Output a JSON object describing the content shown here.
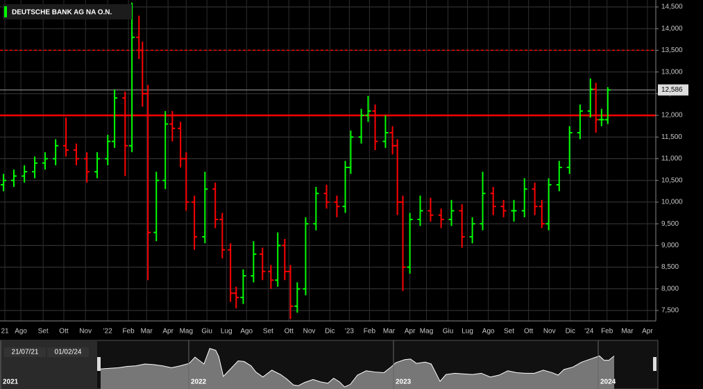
{
  "chart_data": {
    "type": "ohlc",
    "title": "DEUTSCHE BANK AG NA O.N.",
    "x": [
      0.08,
      0.61,
      1.15,
      1.68,
      2.21,
      2.75,
      3.28,
      3.81,
      4.35,
      4.88,
      5.42,
      5.77,
      6.31,
      6.66,
      7.02,
      7.2,
      7.48,
      7.91,
      8.37,
      8.73,
      9.15,
      9.44,
      9.86,
      10.4,
      10.93,
      11.29,
      11.71,
      12.0,
      12.36,
      12.89,
      13.35,
      13.78,
      14.13,
      14.49,
      14.78,
      15.13,
      15.56,
      16.09,
      16.63,
      17.16,
      17.59,
      17.87,
      18.41,
      18.76,
      19.12,
      19.65,
      20.01,
      20.26,
      20.54,
      20.9,
      21.43,
      21.96,
      22.5,
      23.03,
      23.57,
      24.1,
      24.63,
      25.17,
      25.7,
      26.23,
      26.77,
      27.3,
      27.66,
      28.01,
      28.55,
      29.08,
      29.62,
      30.15,
      30.43,
      30.72,
      31.04
    ],
    "open": [
      10400,
      10500,
      10600,
      10700,
      10900,
      11000,
      11300,
      11200,
      11000,
      10700,
      11000,
      11400,
      12400,
      11300,
      13800,
      13500,
      12500,
      9300,
      10500,
      11800,
      11700,
      11000,
      10000,
      9200,
      10300,
      9600,
      8900,
      7900,
      7800,
      8300,
      8800,
      8400,
      8200,
      9000,
      8400,
      7600,
      8000,
      9500,
      10200,
      10000,
      9900,
      10800,
      11500,
      12000,
      12100,
      11400,
      11600,
      11300,
      10000,
      8500,
      9600,
      9800,
      9700,
      9600,
      9800,
      9200,
      9500,
      10200,
      9900,
      9800,
      9800,
      10300,
      9900,
      9500,
      10400,
      10800,
      11600,
      12100,
      12600,
      11900,
      11900
    ],
    "high": [
      10650,
      10750,
      10850,
      11050,
      11150,
      11450,
      11950,
      11350,
      11150,
      11150,
      11550,
      12600,
      12550,
      14600,
      14300,
      13700,
      12700,
      10700,
      12100,
      12100,
      11850,
      11150,
      10150,
      10700,
      10450,
      9750,
      9050,
      8050,
      8450,
      9100,
      8950,
      8550,
      9300,
      9150,
      8550,
      8150,
      9650,
      10350,
      10400,
      10150,
      10950,
      11650,
      12150,
      12450,
      12250,
      12000,
      11750,
      11450,
      10150,
      9750,
      10150,
      10100,
      9850,
      10050,
      9950,
      9650,
      10700,
      10350,
      10050,
      10050,
      10550,
      10450,
      10050,
      10550,
      10950,
      11750,
      12250,
      12850,
      12750,
      12150,
      12650
    ],
    "low": [
      10250,
      10350,
      10450,
      10550,
      10750,
      10850,
      11050,
      10850,
      10450,
      10550,
      10850,
      11250,
      10600,
      11150,
      13300,
      12200,
      8200,
      9100,
      10300,
      11400,
      10800,
      9800,
      8900,
      9050,
      9400,
      8700,
      7700,
      7550,
      7650,
      8150,
      8200,
      8000,
      8050,
      8200,
      7300,
      7450,
      7850,
      9350,
      9850,
      9650,
      9750,
      10650,
      11350,
      11850,
      11200,
      11250,
      11100,
      9700,
      7950,
      8350,
      9450,
      9550,
      9400,
      9450,
      8950,
      9050,
      9350,
      9700,
      9650,
      9550,
      9650,
      9700,
      9400,
      9350,
      10250,
      10650,
      11450,
      11950,
      11600,
      11750,
      11800
    ],
    "close": [
      10500,
      10600,
      10700,
      10900,
      11000,
      11300,
      11200,
      11000,
      10700,
      11000,
      11400,
      12400,
      11300,
      13800,
      13500,
      12500,
      9300,
      10500,
      11800,
      11700,
      11000,
      10000,
      9200,
      10300,
      9600,
      8900,
      7900,
      7800,
      8300,
      8800,
      8400,
      8200,
      9000,
      8400,
      7600,
      8000,
      9500,
      10200,
      10000,
      9900,
      10800,
      11500,
      12000,
      12100,
      11400,
      11600,
      11300,
      10000,
      8500,
      9600,
      9800,
      9700,
      9600,
      9800,
      9200,
      9500,
      10200,
      9900,
      9800,
      9800,
      10300,
      9900,
      9500,
      10400,
      10800,
      11600,
      12100,
      12600,
      11900,
      11900,
      12586
    ],
    "up_color": "#00ff00",
    "down_color": "#ff0000",
    "xlim": [
      -0.1,
      33.5
    ],
    "ylim": [
      7260,
      14660
    ],
    "xticks": [
      {
        "value": 0.15,
        "label": "21"
      },
      {
        "value": 0.97,
        "label": "Ago"
      },
      {
        "value": 2.11,
        "label": "Set"
      },
      {
        "value": 3.17,
        "label": "Ott"
      },
      {
        "value": 4.28,
        "label": "Nov"
      },
      {
        "value": 5.42,
        "label": "'22"
      },
      {
        "value": 6.48,
        "label": "Feb"
      },
      {
        "value": 7.41,
        "label": "Mar"
      },
      {
        "value": 8.51,
        "label": "Apr"
      },
      {
        "value": 9.44,
        "label": "Mag"
      },
      {
        "value": 10.5,
        "label": "Giu"
      },
      {
        "value": 11.5,
        "label": "Lug"
      },
      {
        "value": 12.53,
        "label": "Ago"
      },
      {
        "value": 13.64,
        "label": "Set"
      },
      {
        "value": 14.7,
        "label": "Ott"
      },
      {
        "value": 15.74,
        "label": "Nov"
      },
      {
        "value": 16.8,
        "label": "Dic"
      },
      {
        "value": 17.8,
        "label": "'23"
      },
      {
        "value": 18.83,
        "label": "Feb"
      },
      {
        "value": 19.83,
        "label": "Mar"
      },
      {
        "value": 20.9,
        "label": "Apr"
      },
      {
        "value": 21.75,
        "label": "Mag"
      },
      {
        "value": 22.85,
        "label": "Giu"
      },
      {
        "value": 23.85,
        "label": "Lug"
      },
      {
        "value": 24.92,
        "label": "Ago"
      },
      {
        "value": 25.98,
        "label": "Set"
      },
      {
        "value": 26.98,
        "label": "Ott"
      },
      {
        "value": 28.05,
        "label": "Nov"
      },
      {
        "value": 29.12,
        "label": "Dic"
      },
      {
        "value": 30.08,
        "label": "'24"
      },
      {
        "value": 31.0,
        "label": "Feb"
      },
      {
        "value": 32.04,
        "label": "Mar"
      },
      {
        "value": 33.07,
        "label": "Apr"
      }
    ],
    "yticks": [
      {
        "value": 7500,
        "label": "7,500"
      },
      {
        "value": 8000,
        "label": "8,000"
      },
      {
        "value": 8500,
        "label": "8,500"
      },
      {
        "value": 9000,
        "label": "9,000"
      },
      {
        "value": 9500,
        "label": "9,500"
      },
      {
        "value": 10000,
        "label": "10,000"
      },
      {
        "value": 10500,
        "label": "10,500"
      },
      {
        "value": 11000,
        "label": "11,000"
      },
      {
        "value": 11500,
        "label": "11,500"
      },
      {
        "value": 12000,
        "label": "12,000"
      },
      {
        "value": 12500,
        "label": "12,500"
      },
      {
        "value": 13000,
        "label": "13,000"
      },
      {
        "value": 13500,
        "label": "13,500"
      },
      {
        "value": 14000,
        "label": "14,000"
      },
      {
        "value": 14500,
        "label": "14,500"
      }
    ],
    "grid": true,
    "reference_lines": [
      {
        "value": 12000,
        "color": "#ff0000",
        "dashed": false
      },
      {
        "value": 13500,
        "color": "#ff0000",
        "dashed": true
      }
    ],
    "last_price": {
      "value": 12586,
      "label": "12,586"
    },
    "navigator": {
      "start_label": "21/07/21",
      "end_label": "01/02/24",
      "years": [
        "2021",
        "2022",
        "2023",
        "2024"
      ]
    }
  }
}
